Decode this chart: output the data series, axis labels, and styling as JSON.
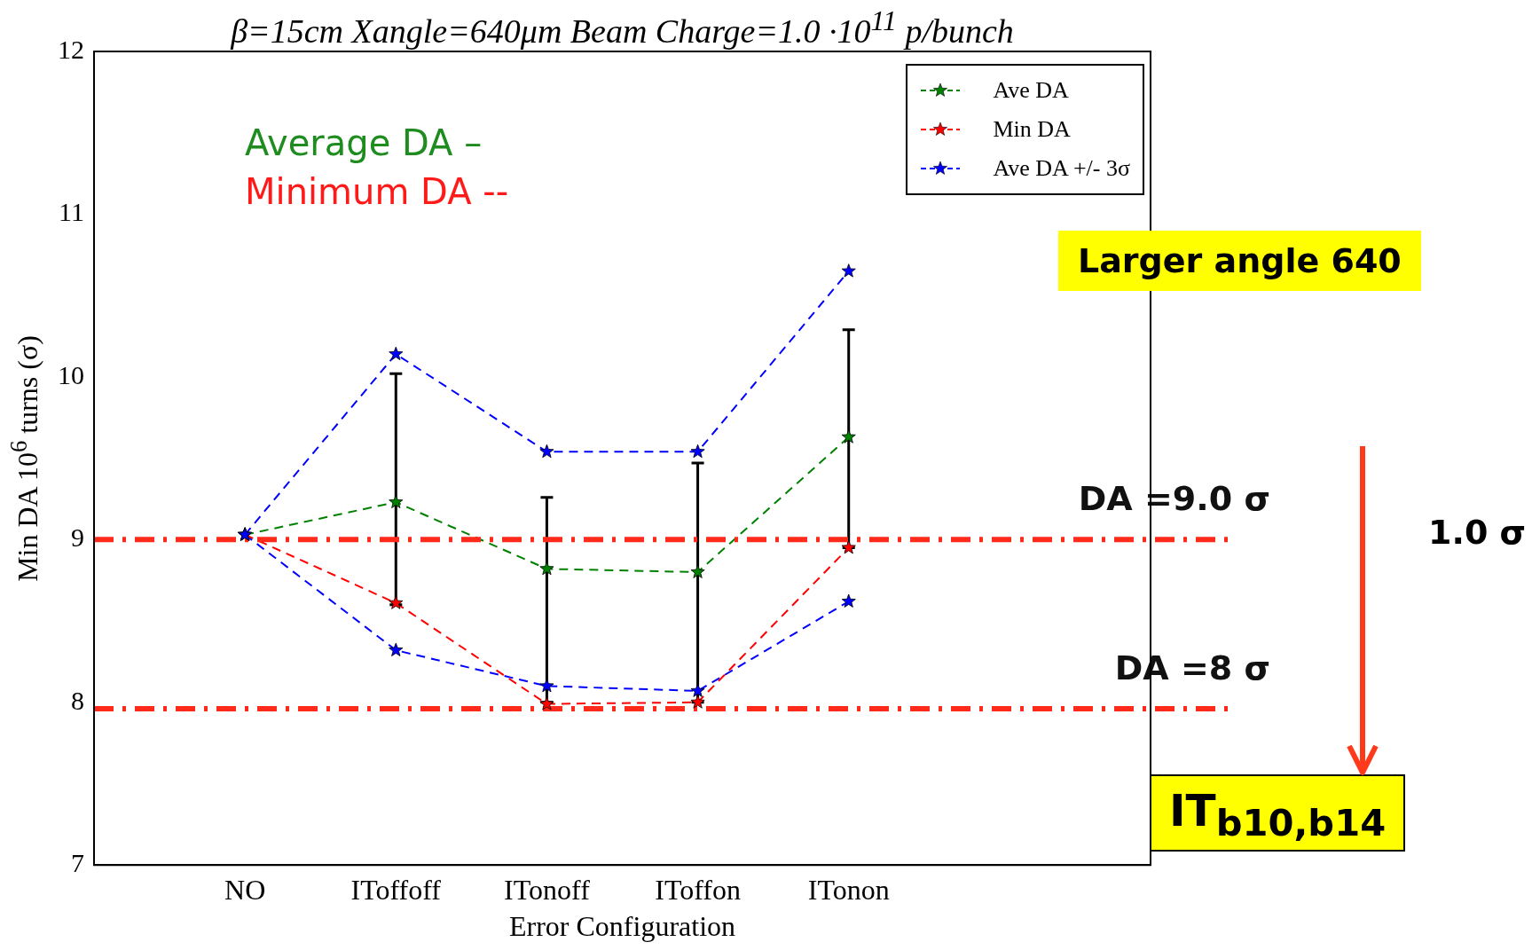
{
  "chart_data": {
    "type": "line",
    "title": "β=15cm  Xangle=640μm Beam Charge=1.0 ·10$^{11}$ p/bunch",
    "xlabel": "Error Configuration",
    "ylabel": "Min DA 10$^{6}$ turns (σ)",
    "categories": [
      "NO",
      "IToffoff",
      "ITonoff",
      "IToffon",
      "ITonon"
    ],
    "series": [
      {
        "name": "Ave DA",
        "color": "#008000",
        "values": [
          9.03,
          9.23,
          8.82,
          8.8,
          9.63
        ],
        "errors": [
          null,
          [
            8.6,
            10.02
          ],
          [
            8.0,
            9.26
          ],
          [
            8.0,
            9.47
          ],
          [
            8.95,
            10.29
          ]
        ]
      },
      {
        "name": "Min DA",
        "color": "#ff0000",
        "values": [
          9.03,
          8.61,
          7.99,
          8.0,
          8.95
        ]
      },
      {
        "name": "Ave DA +/- 3σ",
        "color": "#0000ff",
        "values": [
          9.03,
          10.14,
          9.54,
          9.54,
          10.65
        ]
      },
      {
        "color": "#0000ff",
        "values": [
          9.03,
          8.32,
          8.1,
          8.07,
          8.62
        ]
      }
    ],
    "ylim": [
      7,
      12
    ],
    "yticks": [
      7,
      8,
      9,
      10,
      11,
      12
    ],
    "grid": false,
    "legend": "top right",
    "marker": "star",
    "line_style": "dashed",
    "ref_lines": [
      {
        "axis": "y",
        "value": 9.0,
        "label": "DA =9.0 σ",
        "color": "#ff2a1a",
        "line_style": "dashdot"
      },
      {
        "axis": "y",
        "value": 7.96,
        "label": "DA =8 σ",
        "color": "#ff2a1a",
        "line_style": "dashdot"
      }
    ],
    "annotations": [
      "Average DA –",
      "Minimum DA --",
      "Larger angle 640",
      "1.0 σ",
      "IT$_{b10,b14}$"
    ]
  }
}
